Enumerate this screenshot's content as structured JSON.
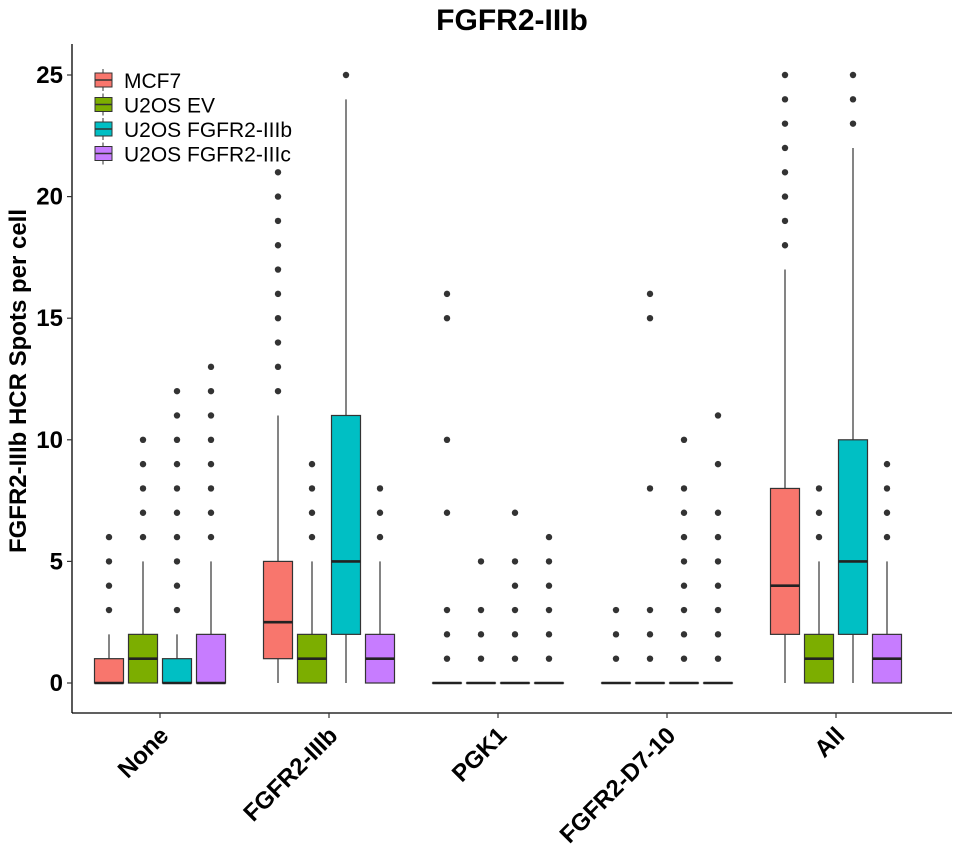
{
  "chart_data": {
    "type": "boxplot",
    "title": "FGFR2-IIIb",
    "xlabel": "",
    "ylabel": "FGFR2-IIIb HCR Spots per cell",
    "ylim": [
      -1.2,
      26.2
    ],
    "yticks": [
      0,
      5,
      10,
      15,
      20,
      25
    ],
    "categories": [
      "None",
      "FGFR2-IIIb",
      "PGK1",
      "FGFR2-D7-10",
      "All"
    ],
    "grid": false,
    "legend_position": "top-left",
    "series": [
      {
        "name": "MCF7",
        "color": "#F8766D",
        "boxes": [
          {
            "q1": 0,
            "median": 0,
            "q3": 1,
            "whisker_low": 0,
            "whisker_high": 2,
            "outliers": [
              3,
              4,
              5,
              6
            ]
          },
          {
            "q1": 1,
            "median": 2.5,
            "q3": 5,
            "whisker_low": 0,
            "whisker_high": 11,
            "outliers": [
              12,
              13,
              14,
              15,
              16,
              17,
              18,
              19,
              20,
              21
            ]
          },
          {
            "q1": 0,
            "median": 0,
            "q3": 0,
            "whisker_low": 0,
            "whisker_high": 0,
            "outliers": [
              1,
              2,
              3,
              7,
              10,
              15,
              16
            ]
          },
          {
            "q1": 0,
            "median": 0,
            "q3": 0,
            "whisker_low": 0,
            "whisker_high": 0,
            "outliers": [
              1,
              2,
              3
            ]
          },
          {
            "q1": 2,
            "median": 4,
            "q3": 8,
            "whisker_low": 0,
            "whisker_high": 17,
            "outliers": [
              18,
              19,
              20,
              21,
              22,
              23,
              24,
              25
            ]
          }
        ]
      },
      {
        "name": "U2OS EV",
        "color": "#7CAE00",
        "boxes": [
          {
            "q1": 0,
            "median": 1,
            "q3": 2,
            "whisker_low": 0,
            "whisker_high": 5,
            "outliers": [
              6,
              7,
              8,
              9,
              10
            ]
          },
          {
            "q1": 0,
            "median": 1,
            "q3": 2,
            "whisker_low": 0,
            "whisker_high": 5,
            "outliers": [
              6,
              7,
              8,
              9
            ]
          },
          {
            "q1": 0,
            "median": 0,
            "q3": 0,
            "whisker_low": 0,
            "whisker_high": 0,
            "outliers": [
              1,
              2,
              3,
              5
            ]
          },
          {
            "q1": 0,
            "median": 0,
            "q3": 0,
            "whisker_low": 0,
            "whisker_high": 0,
            "outliers": [
              1,
              2,
              3,
              8,
              15,
              16
            ]
          },
          {
            "q1": 0,
            "median": 1,
            "q3": 2,
            "whisker_low": 0,
            "whisker_high": 5,
            "outliers": [
              6,
              7,
              8
            ]
          }
        ]
      },
      {
        "name": "U2OS FGFR2-IIIb",
        "color": "#00BFC4",
        "boxes": [
          {
            "q1": 0,
            "median": 0,
            "q3": 1,
            "whisker_low": 0,
            "whisker_high": 2,
            "outliers": [
              3,
              4,
              5,
              6,
              7,
              8,
              9,
              10,
              11,
              12
            ]
          },
          {
            "q1": 2,
            "median": 5,
            "q3": 11,
            "whisker_low": 0,
            "whisker_high": 24,
            "outliers": [
              25
            ]
          },
          {
            "q1": 0,
            "median": 0,
            "q3": 0,
            "whisker_low": 0,
            "whisker_high": 0,
            "outliers": [
              1,
              2,
              3,
              4,
              5,
              7
            ]
          },
          {
            "q1": 0,
            "median": 0,
            "q3": 0,
            "whisker_low": 0,
            "whisker_high": 0,
            "outliers": [
              1,
              2,
              3,
              4,
              5,
              6,
              7,
              8,
              10
            ]
          },
          {
            "q1": 2,
            "median": 5,
            "q3": 10,
            "whisker_low": 0,
            "whisker_high": 22,
            "outliers": [
              23,
              24,
              25
            ]
          }
        ]
      },
      {
        "name": "U2OS FGFR2-IIIc",
        "color": "#C77CFF",
        "boxes": [
          {
            "q1": 0,
            "median": 0,
            "q3": 2,
            "whisker_low": 0,
            "whisker_high": 5,
            "outliers": [
              6,
              7,
              8,
              9,
              10,
              11,
              12,
              13
            ]
          },
          {
            "q1": 0,
            "median": 1,
            "q3": 2,
            "whisker_low": 0,
            "whisker_high": 5,
            "outliers": [
              6,
              7,
              8
            ]
          },
          {
            "q1": 0,
            "median": 0,
            "q3": 0,
            "whisker_low": 0,
            "whisker_high": 0,
            "outliers": [
              1,
              2,
              3,
              4,
              5,
              6
            ]
          },
          {
            "q1": 0,
            "median": 0,
            "q3": 0,
            "whisker_low": 0,
            "whisker_high": 0,
            "outliers": [
              1,
              2,
              3,
              4,
              5,
              6,
              7,
              9,
              11
            ]
          },
          {
            "q1": 0,
            "median": 1,
            "q3": 2,
            "whisker_low": 0,
            "whisker_high": 5,
            "outliers": [
              6,
              7,
              8,
              9
            ]
          }
        ]
      }
    ]
  }
}
